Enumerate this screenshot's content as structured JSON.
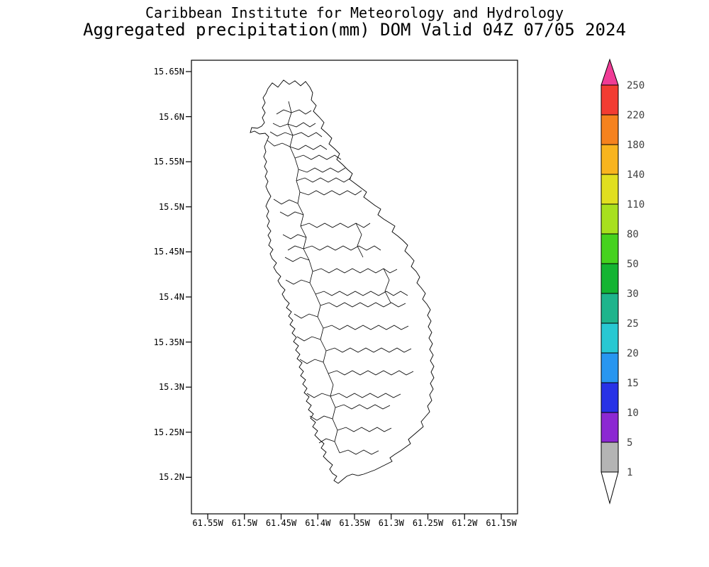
{
  "header": {
    "line1": "Caribbean Institute for Meteorology and Hydrology",
    "line2": "Aggregated precipitation(mm) DOM Valid 04Z 07/05 2024"
  },
  "map": {
    "region_code": "DOM",
    "region_name": "Dominica watershed map",
    "y_axis_labels": [
      "15.65N",
      "15.6N",
      "15.55N",
      "15.5N",
      "15.45N",
      "15.4N",
      "15.35N",
      "15.3N",
      "15.25N",
      "15.2N"
    ],
    "x_axis_labels": [
      "61.55W",
      "61.5W",
      "61.45W",
      "61.4W",
      "61.35W",
      "61.3W",
      "61.25W",
      "61.2W",
      "61.15W"
    ],
    "outline_color": "#000000",
    "background": "#ffffff"
  },
  "colorbar": {
    "labels": [
      "250",
      "220",
      "180",
      "140",
      "110",
      "80",
      "50",
      "30",
      "25",
      "20",
      "15",
      "10",
      "5",
      "1"
    ],
    "segment_colors_top_to_bottom": [
      "#f23c32",
      "#f5821e",
      "#f8b41e",
      "#e1df20",
      "#a8e01e",
      "#46d21e",
      "#14b432",
      "#1eb48c",
      "#28c8d2",
      "#2896f0",
      "#2832e6",
      "#8c28d2",
      "#b4b4b4"
    ],
    "arrow_top_color": "#f03c96",
    "arrow_bottom_color": "#ffffff",
    "outline_color": "#000000",
    "label_color": "#404040"
  }
}
